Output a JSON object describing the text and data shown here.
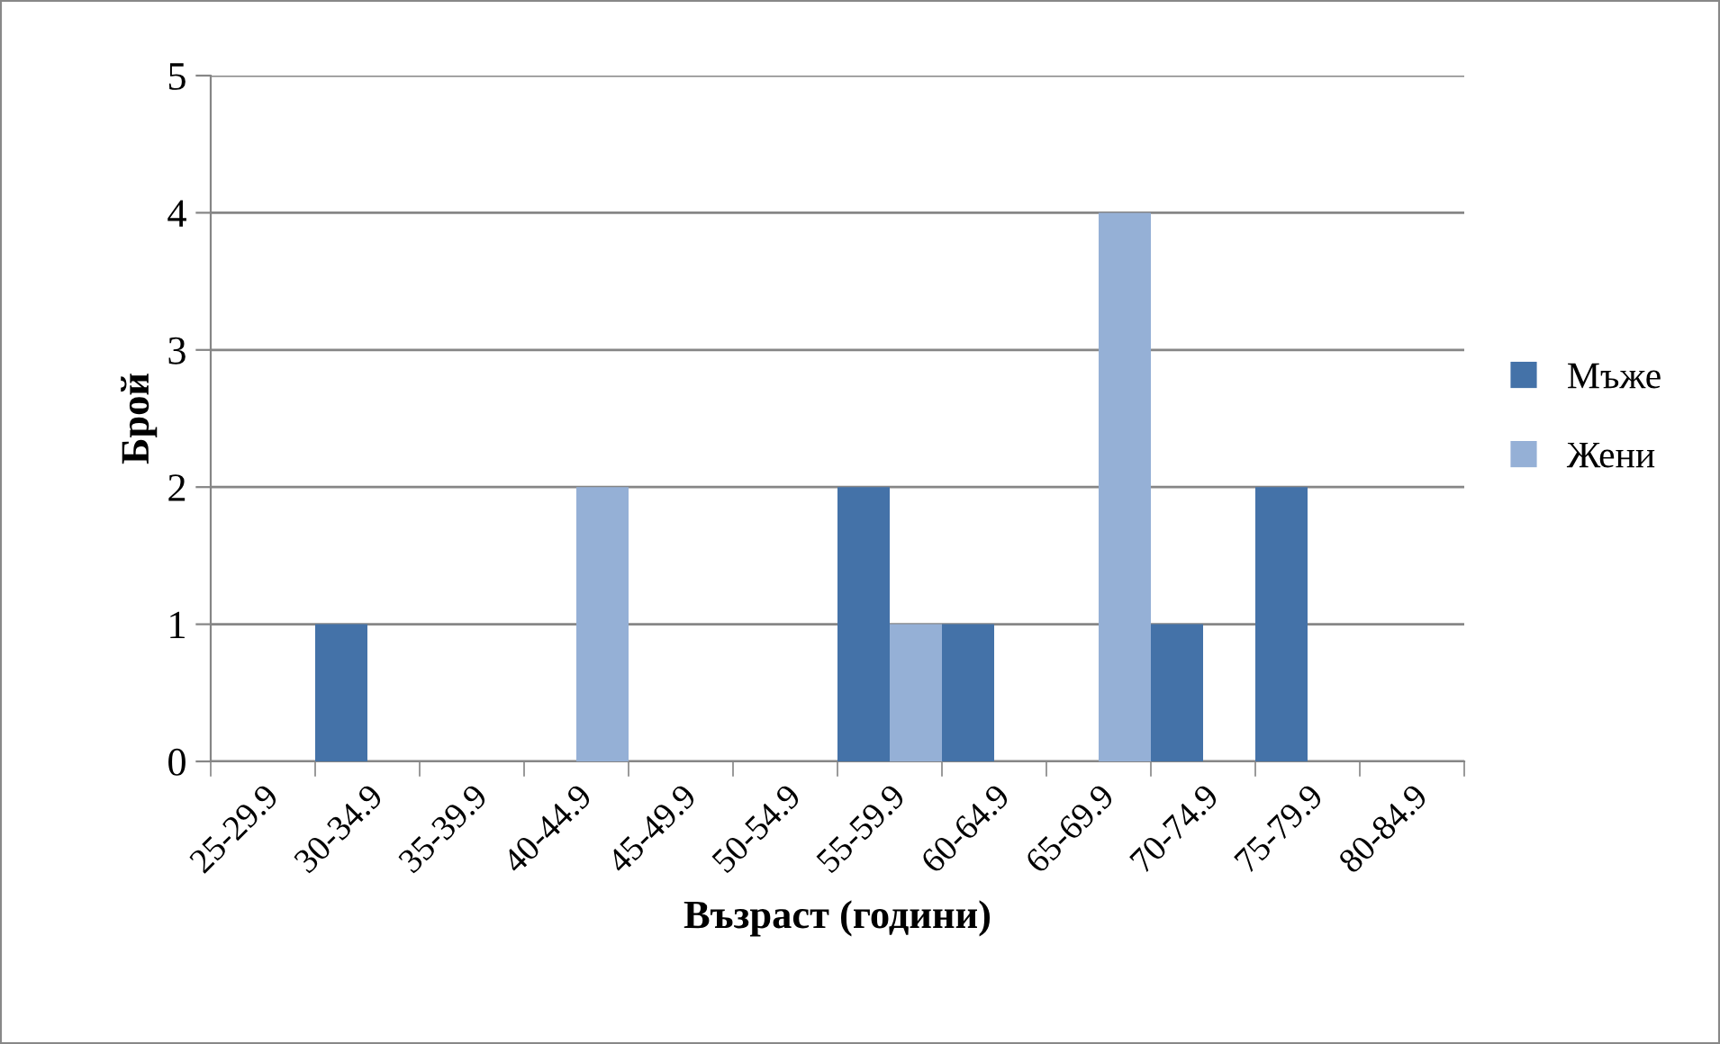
{
  "chart_data": {
    "type": "bar",
    "xlabel": "Възраст (години)",
    "ylabel": "Брой",
    "categories": [
      "25-29.9",
      "30-34.9",
      "35-39.9",
      "40-44.9",
      "45-49.9",
      "50-54.9",
      "55-59.9",
      "60-64.9",
      "65-69.9",
      "70-74.9",
      "75-79.9",
      "80-84.9"
    ],
    "series": [
      {
        "name": "Мъже",
        "color": "#4472a8",
        "values": [
          0,
          1,
          0,
          0,
          0,
          0,
          2,
          1,
          0,
          1,
          2,
          0
        ]
      },
      {
        "name": "Жени",
        "color": "#95b0d6",
        "values": [
          0,
          0,
          0,
          2,
          0,
          0,
          1,
          0,
          4,
          0,
          0,
          0
        ]
      }
    ],
    "ylim": [
      0,
      5
    ],
    "yticks": [
      0,
      1,
      2,
      3,
      4,
      5
    ],
    "grid": "y",
    "legend": "right"
  }
}
